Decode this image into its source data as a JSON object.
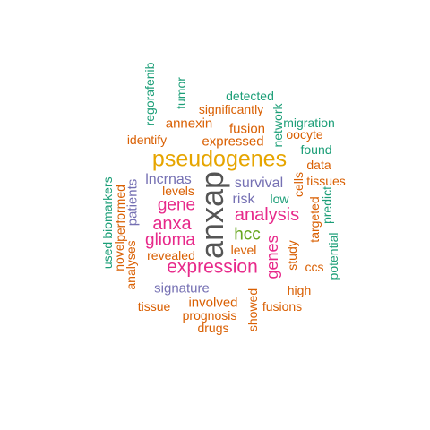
{
  "words": [
    {
      "key": "anxap",
      "text": "anxap",
      "color": "#555555"
    },
    {
      "key": "pseudogenes",
      "text": "pseudogenes",
      "color": "#e6a500"
    },
    {
      "key": "expression",
      "text": "expression",
      "color": "#e7298a"
    },
    {
      "key": "analysis",
      "text": "analysis",
      "color": "#e7298a"
    },
    {
      "key": "anxa",
      "text": "anxa",
      "color": "#e7298a"
    },
    {
      "key": "glioma",
      "text": "glioma",
      "color": "#e7298a"
    },
    {
      "key": "gene",
      "text": "gene",
      "color": "#e7298a"
    },
    {
      "key": "genes",
      "text": "genes",
      "color": "#e7298a"
    },
    {
      "key": "hcc",
      "text": "hcc",
      "color": "#66a61e"
    },
    {
      "key": "lncrnas",
      "text": "lncrnas",
      "color": "#7570b3"
    },
    {
      "key": "survival",
      "text": "survival",
      "color": "#7570b3"
    },
    {
      "key": "risk",
      "text": "risk",
      "color": "#7570b3"
    },
    {
      "key": "signature",
      "text": "signature",
      "color": "#7570b3"
    },
    {
      "key": "patients",
      "text": "patients",
      "color": "#7570b3"
    },
    {
      "key": "annexin",
      "text": "annexin",
      "color": "#d95f02"
    },
    {
      "key": "fusion",
      "text": "fusion",
      "color": "#d95f02"
    },
    {
      "key": "expressed",
      "text": "expressed",
      "color": "#d95f02"
    },
    {
      "key": "significantly",
      "text": "significantly",
      "color": "#d95f02"
    },
    {
      "key": "identify",
      "text": "identify",
      "color": "#d95f02"
    },
    {
      "key": "levels",
      "text": "levels",
      "color": "#d95f02"
    },
    {
      "key": "performed",
      "text": "performed",
      "color": "#d95f02"
    },
    {
      "key": "analyses",
      "text": "analyses",
      "color": "#d95f02"
    },
    {
      "key": "novel",
      "text": "novel",
      "color": "#d95f02"
    },
    {
      "key": "revealed",
      "text": "revealed",
      "color": "#d95f02"
    },
    {
      "key": "involved",
      "text": "involved",
      "color": "#d95f02"
    },
    {
      "key": "prognosis",
      "text": "prognosis",
      "color": "#d95f02"
    },
    {
      "key": "tissue",
      "text": "tissue",
      "color": "#d95f02"
    },
    {
      "key": "drugs",
      "text": "drugs",
      "color": "#d95f02"
    },
    {
      "key": "showed",
      "text": "showed",
      "color": "#d95f02"
    },
    {
      "key": "fusions",
      "text": "fusions",
      "color": "#d95f02"
    },
    {
      "key": "high",
      "text": "high",
      "color": "#d95f02"
    },
    {
      "key": "ccs",
      "text": "ccs",
      "color": "#d95f02"
    },
    {
      "key": "study",
      "text": "study",
      "color": "#d95f02"
    },
    {
      "key": "level",
      "text": "level",
      "color": "#d95f02"
    },
    {
      "key": "targeted",
      "text": "targeted",
      "color": "#d95f02"
    },
    {
      "key": "tissues",
      "text": "tissues",
      "color": "#d95f02"
    },
    {
      "key": "data",
      "text": "data",
      "color": "#d95f02"
    },
    {
      "key": "oocyte",
      "text": "oocyte",
      "color": "#d95f02"
    },
    {
      "key": "cells",
      "text": "cells",
      "color": "#d95f02"
    },
    {
      "key": "detected",
      "text": "detected",
      "color": "#1b9e77"
    },
    {
      "key": "migration",
      "text": "migration",
      "color": "#1b9e77"
    },
    {
      "key": "found",
      "text": "found",
      "color": "#1b9e77"
    },
    {
      "key": "network",
      "text": "network",
      "color": "#1b9e77"
    },
    {
      "key": "low",
      "text": "low",
      "color": "#1b9e77"
    },
    {
      "key": "predict",
      "text": "predict",
      "color": "#1b9e77"
    },
    {
      "key": "potential",
      "text": "potential",
      "color": "#1b9e77"
    },
    {
      "key": "regorafenib",
      "text": "regorafenib",
      "color": "#1b9e77"
    },
    {
      "key": "tumor",
      "text": "tumor",
      "color": "#1b9e77"
    },
    {
      "key": "biomarkers",
      "text": "biomarkers",
      "color": "#1b9e77"
    },
    {
      "key": "used",
      "text": "used",
      "color": "#1b9e77"
    }
  ]
}
